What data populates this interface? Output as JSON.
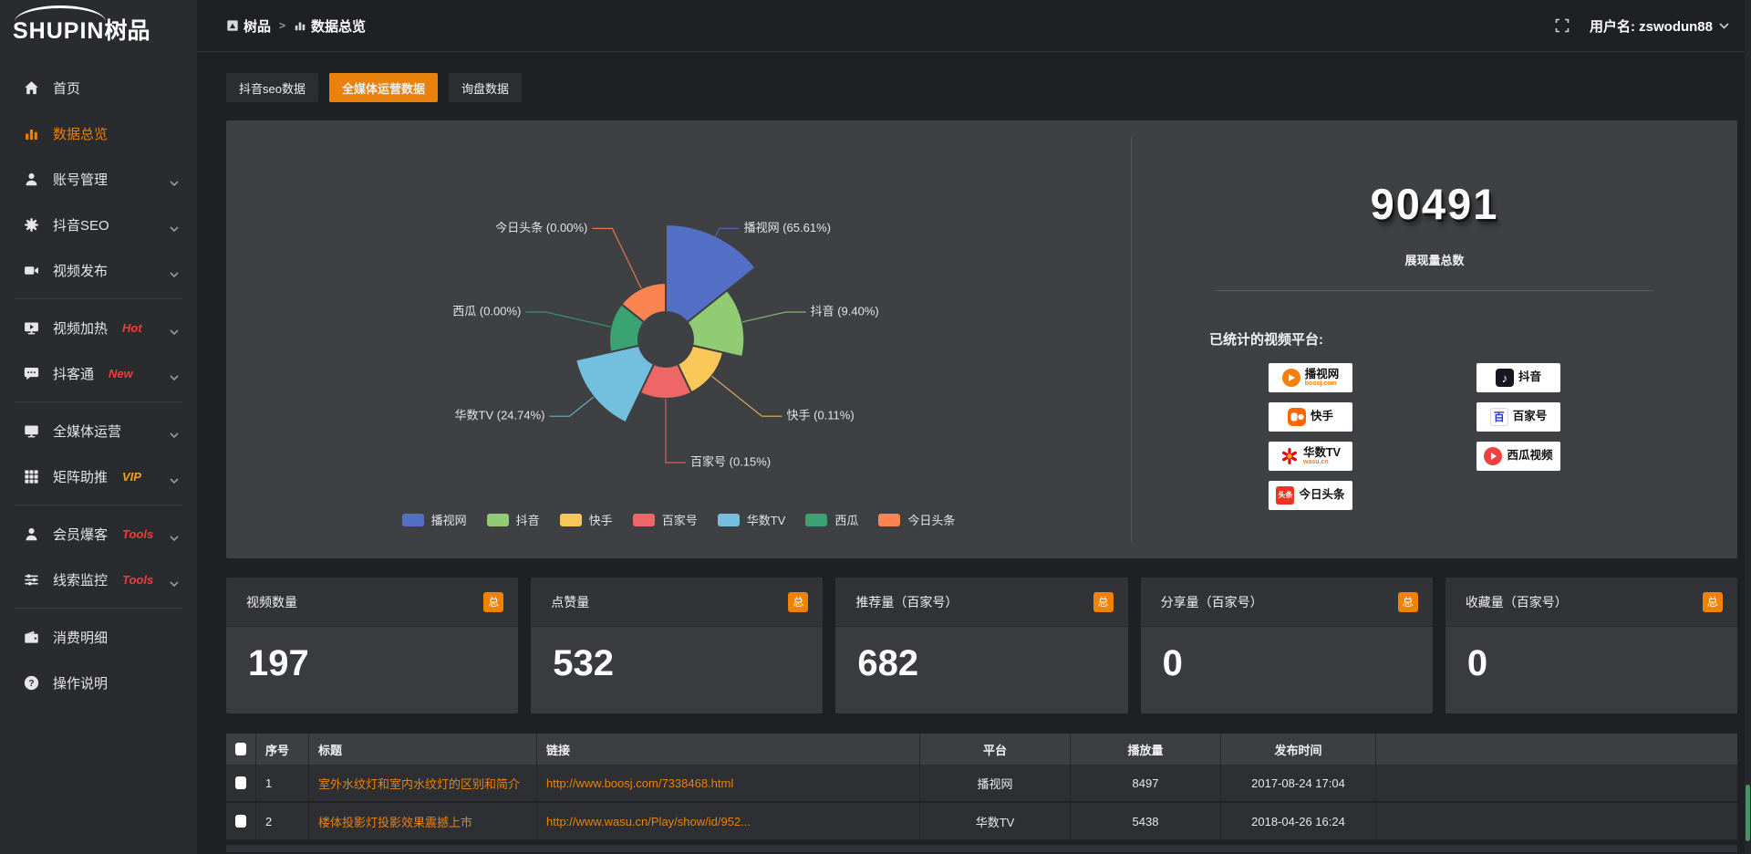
{
  "app": {
    "logo_en": "SHUPIN",
    "logo_cn": "树品"
  },
  "header": {
    "breadcrumb": [
      {
        "label": "树品",
        "icon": "app-icon"
      },
      {
        "label": "数据总览",
        "icon": "bar-chart-icon"
      }
    ],
    "separator": ">",
    "user_label": "用户名: zswodun88"
  },
  "sidebar": {
    "items": [
      {
        "label": "首页",
        "icon": "home-icon"
      },
      {
        "label": "数据总览",
        "icon": "bar-chart-icon",
        "active": true
      },
      {
        "label": "账号管理",
        "icon": "user-icon",
        "chevron": true
      },
      {
        "label": "抖音SEO",
        "icon": "gear-icon",
        "chevron": true
      },
      {
        "label": "视频发布",
        "icon": "video-camera-icon",
        "chevron": true
      },
      {
        "divider": true
      },
      {
        "label": "视频加热",
        "icon": "screen-play-icon",
        "badge": "Hot",
        "badge_color": "#f23c3c",
        "chevron": true
      },
      {
        "label": "抖客通",
        "icon": "chat-icon",
        "badge": "New",
        "badge_color": "#f23c3c",
        "chevron": true
      },
      {
        "divider": true
      },
      {
        "label": "全媒体运营",
        "icon": "monitor-icon",
        "chevron": true
      },
      {
        "label": "矩阵助推",
        "icon": "grid-icon",
        "badge": "VIP",
        "badge_color": "#f0a020",
        "chevron": true
      },
      {
        "divider": true
      },
      {
        "label": "会员爆客",
        "icon": "member-icon",
        "badge": "Tools",
        "badge_color": "#f23c3c",
        "chevron": true
      },
      {
        "label": "线索监控",
        "icon": "sliders-icon",
        "badge": "Tools",
        "badge_color": "#f23c3c",
        "chevron": true
      },
      {
        "divider": true
      },
      {
        "label": "消费明细",
        "icon": "wallet-icon"
      },
      {
        "label": "操作说明",
        "icon": "help-icon"
      }
    ]
  },
  "tabs": [
    {
      "label": "抖音seo数据",
      "active": false
    },
    {
      "label": "全媒体运营数据",
      "active": true
    },
    {
      "label": "询盘数据",
      "active": false
    }
  ],
  "chart_data": {
    "type": "pie",
    "style": "nightingale-rose",
    "unit": "percent",
    "legend_position": "bottom",
    "series": [
      {
        "name": "播视网",
        "value": 65.61,
        "label": "播视网 (65.61%)",
        "color": "#5470c6"
      },
      {
        "name": "抖音",
        "value": 9.4,
        "label": "抖音 (9.40%)",
        "color": "#91cc75"
      },
      {
        "name": "快手",
        "value": 0.11,
        "label": "快手 (0.11%)",
        "color": "#fac858"
      },
      {
        "name": "百家号",
        "value": 0.15,
        "label": "百家号 (0.15%)",
        "color": "#ee6666"
      },
      {
        "name": "华数TV",
        "value": 24.74,
        "label": "华数TV (24.74%)",
        "color": "#73c0de"
      },
      {
        "name": "西瓜",
        "value": 0.0,
        "label": "西瓜 (0.00%)",
        "color": "#3ba272"
      },
      {
        "name": "今日头条",
        "value": 0.0,
        "label": "今日头条 (0.00%)",
        "color": "#fc8452"
      }
    ],
    "legend": [
      "播视网",
      "抖音",
      "快手",
      "百家号",
      "华数TV",
      "西瓜",
      "今日头条"
    ]
  },
  "summary": {
    "total_value": "90491",
    "total_label": "展现量总数",
    "platforms_title": "已统计的视频平台:",
    "platforms": [
      {
        "name": "播视网",
        "sub": "boosj.com",
        "logo": "boosj-logo"
      },
      {
        "name": "抖音",
        "logo": "douyin-logo"
      },
      {
        "name": "快手",
        "logo": "kuaishou-logo"
      },
      {
        "name": "百家号",
        "logo": "baijiahao-logo"
      },
      {
        "name": "华数TV",
        "sub": "wasu.cn",
        "logo": "wasu-logo"
      },
      {
        "name": "西瓜视频",
        "logo": "xigua-logo"
      },
      {
        "name": "今日头条",
        "logo": "toutiao-logo"
      }
    ]
  },
  "stat_cards": [
    {
      "label": "视频数量",
      "badge": "总",
      "value": "197"
    },
    {
      "label": "点赞量",
      "badge": "总",
      "value": "532"
    },
    {
      "label": "推荐量（百家号）",
      "badge": "总",
      "value": "682"
    },
    {
      "label": "分享量（百家号）",
      "badge": "总",
      "value": "0"
    },
    {
      "label": "收藏量（百家号）",
      "badge": "总",
      "value": "0"
    }
  ],
  "table": {
    "headers": [
      "序号",
      "标题",
      "链接",
      "平台",
      "播放量",
      "发布时间"
    ],
    "rows": [
      {
        "no": "1",
        "title": "室外水纹灯和室内水纹灯的区别和简介",
        "link": "http://www.boosj.com/7338468.html",
        "platform": "播视网",
        "plays": "8497",
        "time": "2017-08-24 17:04"
      },
      {
        "no": "2",
        "title": "楼体投影灯投影效果震撼上市",
        "link": "http://www.wasu.cn/Play/show/id/952...",
        "platform": "华数TV",
        "plays": "5438",
        "time": "2018-04-26 16:24"
      }
    ]
  },
  "colors": {
    "accent": "#e8820e",
    "hot_badge": "#f23c3c",
    "vip_badge": "#f0a020",
    "link": "#e8820e",
    "badge_bg": "#ef8200"
  }
}
